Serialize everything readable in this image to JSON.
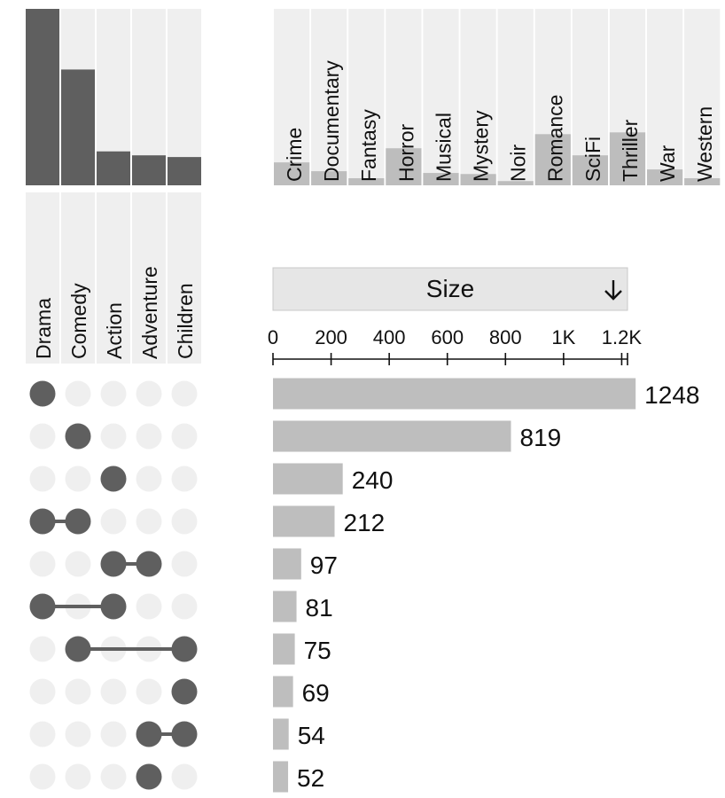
{
  "chart_data": {
    "type": "bar",
    "title": "",
    "sort": {
      "label": "Size",
      "direction": "descending",
      "icon": "arrow-down-icon"
    },
    "x_axis": {
      "ticks": [
        "0",
        "200",
        "400",
        "600",
        "800",
        "1K",
        "1.2K"
      ],
      "tick_values": [
        0,
        200,
        400,
        600,
        800,
        1000,
        1200
      ],
      "xlim": [
        0,
        1220
      ]
    },
    "main_sets": [
      {
        "name": "Drama",
        "size": 1248
      },
      {
        "name": "Comedy",
        "size": 819
      },
      {
        "name": "Action",
        "size": 240
      },
      {
        "name": "Adventure",
        "size": 212
      },
      {
        "name": "Children",
        "size": 200
      }
    ],
    "other_sets": [
      {
        "name": "Crime",
        "size": 65
      },
      {
        "name": "Documentary",
        "size": 40
      },
      {
        "name": "Fantasy",
        "size": 20
      },
      {
        "name": "Horror",
        "size": 105
      },
      {
        "name": "Musical",
        "size": 35
      },
      {
        "name": "Mystery",
        "size": 32
      },
      {
        "name": "Noir",
        "size": 12
      },
      {
        "name": "Romance",
        "size": 145
      },
      {
        "name": "SciFi",
        "size": 85
      },
      {
        "name": "Thriller",
        "size": 150
      },
      {
        "name": "War",
        "size": 45
      },
      {
        "name": "Western",
        "size": 20
      }
    ],
    "set_size_max": 1248,
    "other_size_max": 500,
    "intersections": [
      {
        "sets": [
          "Drama"
        ],
        "size": 1248
      },
      {
        "sets": [
          "Comedy"
        ],
        "size": 819
      },
      {
        "sets": [
          "Action"
        ],
        "size": 240
      },
      {
        "sets": [
          "Drama",
          "Comedy"
        ],
        "size": 212
      },
      {
        "sets": [
          "Action",
          "Adventure"
        ],
        "size": 97
      },
      {
        "sets": [
          "Drama",
          "Action"
        ],
        "size": 81
      },
      {
        "sets": [
          "Comedy",
          "Children"
        ],
        "size": 75
      },
      {
        "sets": [
          "Children"
        ],
        "size": 69
      },
      {
        "sets": [
          "Adventure",
          "Children"
        ],
        "size": 54
      },
      {
        "sets": [
          "Adventure"
        ],
        "size": 52
      }
    ],
    "colors": {
      "set_bar": "#5f5f5f",
      "set_bg": "#efefef",
      "other_bar": "#bdbdbd",
      "intersection_bar": "#bebebe",
      "dot_active": "#5f5f5f",
      "dot_inactive": "#efefef",
      "button_bg": "#e6e6e6",
      "axis": "#111111"
    }
  }
}
